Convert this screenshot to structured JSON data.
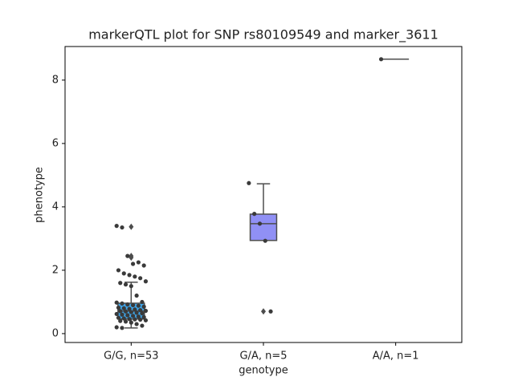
{
  "chart_data": {
    "type": "box",
    "title": "markerQTL plot for SNP rs80109549 and marker_3611",
    "xlabel": "genotype",
    "ylabel": "phenotype",
    "categories": [
      "G/G, n=53",
      "G/A, n=5",
      "A/A, n=1"
    ],
    "ylim": [
      -0.28,
      9.06
    ],
    "yticks": [
      0,
      2,
      4,
      6,
      8
    ],
    "line_color": "#4d4d4d",
    "point_color": "#3a3a3a",
    "boxes": [
      {
        "color": "#3fa5e8",
        "q1": 0.46,
        "median": 0.71,
        "q3": 0.96,
        "whislo": 0.18,
        "whishi": 1.62,
        "fliers": [
          2.4,
          2.45,
          3.37
        ],
        "points": [
          3.4,
          3.35,
          2.45,
          2.2,
          2.25,
          2.15,
          2.0,
          1.9,
          1.85,
          1.8,
          1.75,
          1.65,
          1.6,
          1.55,
          1.5,
          1.2,
          1.0,
          0.98,
          0.95,
          0.92,
          0.9,
          0.88,
          0.85,
          0.82,
          0.8,
          0.78,
          0.76,
          0.74,
          0.72,
          0.71,
          0.7,
          0.68,
          0.66,
          0.64,
          0.62,
          0.6,
          0.58,
          0.56,
          0.54,
          0.52,
          0.5,
          0.48,
          0.46,
          0.45,
          0.44,
          0.42,
          0.4,
          0.38,
          0.35,
          0.3,
          0.25,
          0.2,
          0.18
        ]
      },
      {
        "color": "#9090f5",
        "q1": 2.94,
        "median": 3.47,
        "q3": 3.77,
        "whislo": 2.94,
        "whishi": 4.73,
        "fliers": [
          0.7
        ],
        "points": [
          4.75,
          3.78,
          3.47,
          2.93,
          0.7
        ]
      },
      {
        "q1": 8.66,
        "median": 8.66,
        "q3": 8.66,
        "whislo": 8.66,
        "whishi": 8.66,
        "fliers": [],
        "points": [
          8.66
        ]
      }
    ]
  }
}
